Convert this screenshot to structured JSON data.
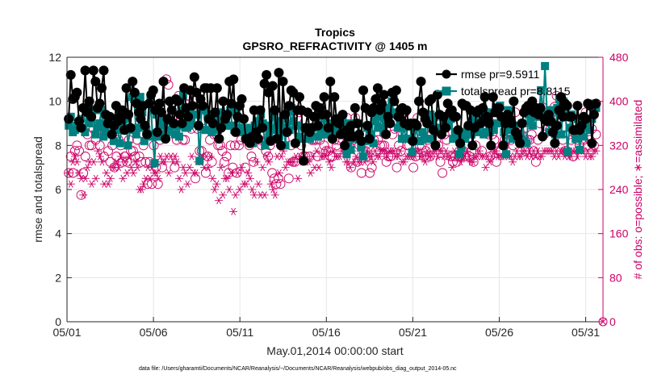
{
  "chart_data": {
    "type": "line",
    "title": "Tropics",
    "subtitle": "GPSRO_REFRACTIVITY @ 1405 m",
    "xlabel": "May.01,2014 00:00:00 start",
    "ylabel": "rmse and totalspread",
    "ylabel_right": "# of obs: o=possible; ∗=assimilated",
    "x_ticks": [
      "05/01",
      "05/06",
      "05/11",
      "05/16",
      "05/21",
      "05/26",
      "05/31"
    ],
    "x_tick_days": [
      0,
      5,
      10,
      15,
      20,
      25,
      30
    ],
    "xlim": [
      0,
      31
    ],
    "ylim": [
      0,
      12
    ],
    "y_ticks": [
      "0",
      "2",
      "4",
      "6",
      "8",
      "10",
      "12"
    ],
    "ylim_right": [
      0,
      480
    ],
    "y_ticks_right": [
      "0",
      "80",
      "160",
      "240",
      "320",
      "400",
      "480"
    ],
    "grid": true,
    "legend_position": "top-right",
    "footnote": "data file: /Users/gharamti/Documents/NCAR/Reanalysis/~/Documents/NCAR/Reanalysis/webpub/obs_diag_output_2014-05.nc",
    "colors": {
      "rmse": "#000000",
      "totalspread": "#008080",
      "obs": "#cc0066"
    },
    "series": [
      {
        "name": "rmse",
        "legend_label": "rmse pr=9.5911",
        "axis": "left",
        "values": [
          9.2,
          11.2,
          10.1,
          10.2,
          10.4,
          9.1,
          8.8,
          9.7,
          11.4,
          9.5,
          10.0,
          9.3,
          11.4,
          10.9,
          9.7,
          9.9,
          10.6,
          11.4,
          9.4,
          9.0,
          9.3,
          8.5,
          8.9,
          9.8,
          9.1,
          9.3,
          9.6,
          8.7,
          10.6,
          9.4,
          8.8,
          10.9,
          10.4,
          9.9,
          9.5,
          9.2,
          9.8,
          8.9,
          8.5,
          9.9,
          10.3,
          10.5,
          9.6,
          8.6,
          9.9,
          9.5,
          10.9,
          8.3,
          9.2,
          10.0,
          9.6,
          9.0,
          10.1,
          10.0,
          9.4,
          9.0,
          10.6,
          9.7,
          9.3,
          10.5,
          9.8,
          11.1,
          10.4,
          8.9,
          10.1,
          9.8,
          10.6,
          10.6,
          9.2,
          10.6,
          9.0,
          9.5,
          10.6,
          8.3,
          8.8,
          10.0,
          9.2,
          9.4,
          10.9,
          9.9,
          11.0,
          8.6,
          9.3,
          9.8,
          10.1,
          9.2,
          8.3,
          8.3,
          8.1,
          8.4,
          9.6,
          8.6,
          8.3,
          9.6,
          8.8,
          10.8,
          11.2,
          10.4,
          8.2,
          10.7,
          9.6,
          8.3,
          11.3,
          8.0,
          10.9,
          9.4,
          8.6,
          9.8,
          10.5,
          10.4,
          8.1,
          9.6,
          10.2,
          9.6,
          7.3,
          8.8,
          9.5,
          8.6,
          8.8,
          9.3,
          9.8,
          8.9,
          9.7,
          9.4,
          10.2,
          9.4,
          8.8,
          10.9,
          8.3,
          10.2,
          9.2,
          9.0,
          8.5,
          9.4,
          8.0,
          8.7,
          8.4,
          8.9,
          8.4,
          9.7,
          9.0,
          8.5,
          8.2,
          10.5,
          9.7,
          8.9,
          8.3,
          9.5,
          9.7,
          10.1,
          10.6,
          9.6,
          9.9,
          10.3,
          8.5,
          9.3,
          9.0,
          10.4,
          10.0,
          10.5,
          9.3,
          9.6,
          9.7,
          9.0,
          9.6,
          8.9,
          9.0,
          8.2,
          9.0,
          8.9,
          10.0,
          10.9,
          9.5,
          9.2,
          9.0,
          10.0,
          10.1,
          8.7,
          8.0,
          10.3,
          9.4,
          8.5,
          9.3,
          8.8,
          9.9,
          9.5,
          9.6,
          9.3,
          9.3,
          8.7,
          8.1,
          9.9,
          9.8,
          9.8,
          8.9,
          9.6,
          8.0,
          8.8,
          9.5,
          9.6,
          9.0,
          9.7,
          10.2,
          9.3,
          9.0,
          8.0,
          10.2,
          9.5,
          9.7,
          9.7,
          9.3,
          8.0,
          9.0,
          9.4,
          9.2,
          9.0,
          10.0,
          8.6,
          8.4,
          8.1,
          9.0,
          9.5,
          9.7,
          9.8,
          9.6,
          10.0,
          9.5,
          9.7,
          9.4,
          9.7,
          8.4,
          9.2,
          9.1,
          9.4,
          9.1,
          8.6,
          8.1,
          8.9,
          9.6,
          10.2,
          9.3,
          9.9,
          9.8,
          9.3,
          9.3,
          8.7,
          8.7,
          9.8,
          8.7,
          8.9,
          9.3,
          9.2,
          9.9,
          9.8,
          8.1,
          9.4,
          9.9
        ]
      },
      {
        "name": "totalspread",
        "legend_label": "totalspread pr=8.8115",
        "axis": "left",
        "values": [
          8.9,
          9.3,
          8.6,
          8.7,
          8.9,
          9.0,
          9.2,
          8.8,
          8.6,
          9.7,
          9.0,
          9.2,
          9.6,
          8.5,
          8.8,
          9.0,
          9.6,
          8.4,
          8.7,
          9.1,
          9.0,
          8.5,
          8.2,
          8.9,
          8.7,
          8.1,
          8.9,
          9.5,
          9.2,
          8.0,
          8.7,
          10.2,
          10.1,
          8.5,
          8.8,
          10.2,
          9.5,
          8.2,
          8.7,
          8.5,
          10.1,
          8.4,
          7.2,
          9.4,
          8.4,
          8.9,
          9.2,
          8.5,
          8.6,
          8.7,
          9.1,
          8.9,
          8.5,
          8.9,
          8.4,
          9.6,
          10.3,
          8.8,
          8.8,
          8.9,
          9.1,
          9.4,
          9.4,
          9.4,
          7.3,
          9.6,
          9.6,
          8.7,
          9.4,
          9.3,
          8.6,
          8.8,
          9.2,
          8.7,
          9.5,
          9.2,
          9.0,
          8.9,
          8.9,
          9.6,
          8.9,
          8.7,
          9.5,
          9.2,
          8.8,
          8.6,
          8.8,
          8.8,
          8.7,
          8.4,
          8.1,
          8.9,
          8.5,
          9.1,
          9.4,
          9.0,
          8.0,
          8.9,
          8.4,
          8.8,
          9.4,
          8.7,
          9.1,
          8.4,
          8.8,
          9.2,
          8.0,
          9.6,
          8.7,
          9.7,
          9.1,
          8.9,
          8.9,
          8.4,
          8.3,
          8.8,
          8.7,
          8.3,
          8.3,
          8.8,
          8.8,
          9.3,
          8.4,
          8.8,
          8.5,
          9.2,
          8.5,
          8.6,
          9.0,
          8.7,
          8.6,
          9.2,
          9.0,
          8.6,
          9.2,
          9.0,
          7.6,
          8.6,
          7.8,
          9.0,
          8.3,
          8.4,
          9.0,
          7.9,
          7.5,
          8.2,
          8.8,
          8.8,
          8.5,
          8.1,
          9.1,
          9.4,
          8.8,
          9.3,
          8.6,
          9.0,
          9.7,
          9.4,
          10.0,
          9.5,
          9.4,
          8.8,
          9.2,
          8.3,
          8.8,
          8.3,
          8.9,
          9.0,
          7.7,
          8.2,
          8.8,
          8.2,
          8.2,
          8.6,
          8.3,
          8.3,
          9.1,
          9.4,
          8.3,
          9.3,
          8.7,
          8.8,
          8.8,
          8.8,
          9.1,
          9.0,
          8.9,
          9.2,
          8.3,
          8.6,
          8.3,
          7.6,
          7.9,
          8.6,
          8.3,
          8.7,
          8.8,
          8.5,
          9.1,
          9.3,
          8.6,
          9.1,
          9.6,
          8.5,
          8.6,
          9.5,
          8.6,
          9.0,
          8.7,
          9.0,
          9.0,
          9.8,
          9.0,
          8.6,
          7.6,
          9.6,
          8.7,
          8.3,
          8.9,
          8.3,
          8.5,
          8.4,
          9.0,
          8.2,
          8.1,
          9.4,
          9.1,
          8.9,
          9.3,
          9.7,
          9.4,
          10.5,
          9.3,
          11.6,
          9.4,
          8.6,
          9.6,
          9.6,
          8.5,
          9.7,
          10.1,
          8.5,
          10.0,
          9.6,
          7.7,
          8.8,
          9.4,
          8.7,
          8.3,
          9.2,
          7.8,
          8.8,
          8.4,
          9.1,
          9.0,
          8.7,
          9.2,
          9.9,
          9.7
        ]
      },
      {
        "name": "obs_possible",
        "legend_label": "",
        "axis": "right",
        "values": [
          270,
          300,
          270,
          310,
          320,
          310,
          230,
          270,
          300,
          340,
          320,
          320,
          350,
          330,
          350,
          320,
          340,
          300,
          350,
          310,
          290,
          320,
          280,
          300,
          330,
          320,
          290,
          300,
          290,
          330,
          310,
          310,
          300,
          330,
          300,
          290,
          320,
          290,
          250,
          290,
          250,
          320,
          280,
          250,
          330,
          280,
          340,
          440,
          430,
          360,
          370,
          280,
          330,
          410,
          370,
          330,
          330,
          410,
          410,
          350,
          380,
          260,
          350,
          310,
          310,
          350,
          270,
          300,
          330,
          290,
          340,
          370,
          320,
          320,
          310,
          290,
          300,
          270,
          320,
          280,
          320,
          270,
          320,
          330,
          350,
          280,
          330,
          320,
          300,
          290,
          330,
          360,
          330,
          320,
          340,
          310,
          300,
          320,
          270,
          260,
          250,
          260,
          250,
          350,
          330,
          350,
          260,
          320,
          290,
          290,
          370,
          380,
          320,
          300,
          300,
          350,
          300,
          330,
          330,
          330,
          300,
          330,
          380,
          320,
          310,
          310,
          300,
          300,
          330,
          320,
          330,
          370,
          360,
          320,
          370,
          320,
          280,
          330,
          370,
          290,
          320,
          270,
          310,
          310,
          300,
          270,
          280,
          330,
          310,
          330,
          320,
          320,
          320,
          290,
          300,
          300,
          340,
          350,
          280,
          320,
          310,
          340,
          380,
          320,
          320,
          330,
          280,
          300,
          370,
          320,
          320,
          300,
          310,
          330,
          300,
          340,
          350,
          330,
          320,
          290,
          270,
          340,
          330,
          370,
          300,
          290,
          300,
          290,
          300,
          300,
          310,
          300,
          340,
          300,
          310,
          290,
          320,
          370,
          360,
          310,
          350,
          380,
          340,
          300,
          340,
          330,
          290,
          310,
          310,
          320,
          330,
          340,
          340,
          330,
          320,
          380,
          350,
          350,
          340,
          350,
          310,
          330,
          330,
          340,
          310,
          290,
          330,
          360,
          390,
          340,
          380,
          370,
          350,
          380,
          390,
          410,
          370,
          400,
          330,
          310,
          310,
          340,
          330,
          300,
          340,
          330,
          320,
          350,
          330,
          380,
          320,
          330,
          350,
          320,
          340
        ]
      },
      {
        "name": "obs_assimilated",
        "legend_label": "",
        "axis": "right",
        "values": [
          270,
          250,
          290,
          300,
          290,
          270,
          260,
          230,
          260,
          280,
          290,
          250,
          290,
          260,
          310,
          300,
          290,
          250,
          270,
          250,
          260,
          280,
          280,
          290,
          280,
          300,
          260,
          290,
          270,
          300,
          280,
          270,
          290,
          280,
          240,
          240,
          250,
          260,
          280,
          260,
          280,
          270,
          270,
          260,
          300,
          290,
          290,
          300,
          270,
          300,
          290,
          300,
          290,
          260,
          240,
          280,
          270,
          250,
          280,
          300,
          270,
          270,
          290,
          290,
          300,
          280,
          300,
          280,
          300,
          260,
          240,
          250,
          220,
          280,
          230,
          260,
          260,
          240,
          270,
          200,
          230,
          270,
          240,
          280,
          250,
          250,
          270,
          260,
          240,
          230,
          290,
          250,
          230,
          280,
          230,
          300,
          290,
          250,
          240,
          230,
          300,
          270,
          300,
          310,
          280,
          290,
          290,
          290,
          290,
          300,
          260,
          300,
          290,
          300,
          290,
          290,
          270,
          300,
          280,
          310,
          280,
          300,
          300,
          300,
          310,
          290,
          280,
          310,
          300,
          300,
          300,
          310,
          310,
          290,
          290,
          280,
          310,
          290,
          300,
          290,
          290,
          300,
          290,
          310,
          300,
          300,
          290,
          310,
          300,
          300,
          310,
          310,
          310,
          300,
          310,
          310,
          310,
          300,
          300,
          310,
          290,
          290,
          300,
          300,
          300,
          300,
          300,
          310,
          310,
          300,
          300,
          290,
          310,
          300,
          300,
          310,
          310,
          300,
          310,
          310,
          300,
          310,
          300,
          300,
          280,
          310,
          300,
          310,
          290,
          300,
          300,
          310,
          300,
          290,
          290,
          300,
          300,
          310,
          300,
          300,
          280,
          300,
          290,
          300,
          310,
          310,
          300,
          300,
          300,
          300,
          310,
          300,
          300,
          290,
          300,
          310,
          300,
          300,
          310,
          310,
          300,
          310,
          300,
          310,
          300,
          310,
          300,
          300,
          310,
          310,
          310,
          310,
          310,
          300,
          310,
          300,
          310,
          310,
          300,
          310,
          300,
          300,
          310,
          310,
          300,
          310,
          310,
          310,
          300,
          310,
          300,
          300,
          310,
          310
        ]
      }
    ]
  }
}
